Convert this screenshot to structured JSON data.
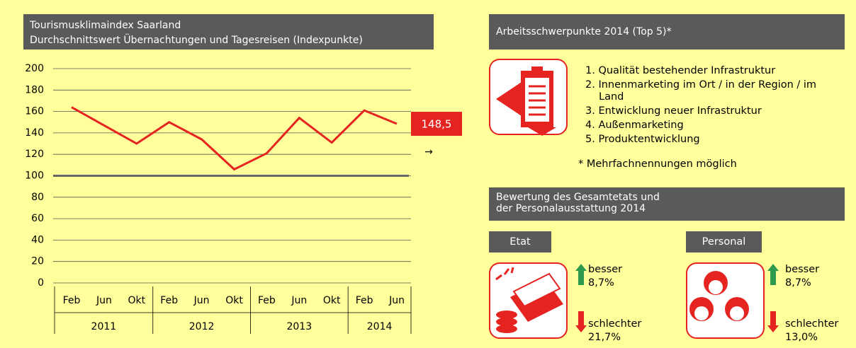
{
  "chart_data": {
    "type": "line",
    "title": "Tourismusklimaindex Saarland",
    "subtitle": "Durchschnittswert Übernachtungen und Tagesreisen (Indexpunkte)",
    "categories": [
      "Feb",
      "Jun",
      "Okt",
      "Feb",
      "Jun",
      "Okt",
      "Feb",
      "Jun",
      "Okt",
      "Feb",
      "Jun"
    ],
    "groups": [
      "2011",
      "2012",
      "2013",
      "2014"
    ],
    "values": [
      164,
      147,
      130,
      150,
      134,
      106,
      121,
      154,
      131,
      161,
      148.5
    ],
    "value_labels": [
      null,
      null,
      null,
      null,
      null,
      null,
      null,
      null,
      null,
      null,
      "148,5"
    ],
    "color": "#e52421",
    "ylim": [
      0,
      200
    ],
    "yticks": [
      0,
      20,
      40,
      60,
      80,
      100,
      120,
      140,
      160,
      180,
      200
    ],
    "grid": true,
    "reference_line": 100
  },
  "focus": {
    "title": "Arbeitsschwerpunkte 2014 (Top 5)*",
    "items": [
      "1. Qualität bestehender Infrastruktur",
      "2. Innenmarketing im Ort / in der Region / im Land",
      "3. Entwicklung neuer Infrastruktur",
      "4. Außenmarketing",
      "5. Produktentwicklung"
    ],
    "note": "* Mehrfachnennungen möglich"
  },
  "rating": {
    "title": [
      "Bewertung des Gesamtetats und",
      "der Personalausstattung 2014"
    ],
    "panels": [
      {
        "label": "Etat",
        "better_label": "besser",
        "better": "8,7%",
        "worse_label": "schlechter",
        "worse": "21,7%"
      },
      {
        "label": "Personal",
        "better_label": "besser",
        "better": "8,7%",
        "worse_label": "schlechter",
        "worse": "13,0%"
      }
    ]
  }
}
